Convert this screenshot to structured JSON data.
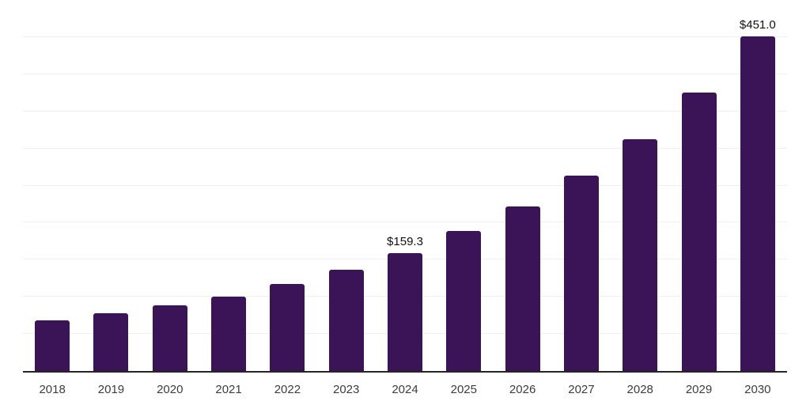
{
  "chart_data": {
    "type": "bar",
    "title": "",
    "xlabel": "",
    "ylabel": "",
    "categories": [
      "2018",
      "2019",
      "2020",
      "2021",
      "2022",
      "2023",
      "2024",
      "2025",
      "2026",
      "2027",
      "2028",
      "2029",
      "2030"
    ],
    "values": [
      68.5,
      78.1,
      88.2,
      100.5,
      116.8,
      136.6,
      159.3,
      188.3,
      221.5,
      263.4,
      312.9,
      375.2,
      451.0
    ],
    "value_labels": {
      "2024": "$159.3",
      "2030": "$451.0"
    },
    "ylim": [
      0,
      500
    ],
    "gridline_step": 50,
    "grid": "horizontal",
    "y_tick_labels_shown": false,
    "legend_position": "none",
    "colors": {
      "bar": "#3a1457",
      "gridline": "#f0f0f0",
      "axis_line": "#262626",
      "tick_label": "#3d3d3d",
      "value_label": "#111111",
      "background": "#ffffff"
    }
  }
}
